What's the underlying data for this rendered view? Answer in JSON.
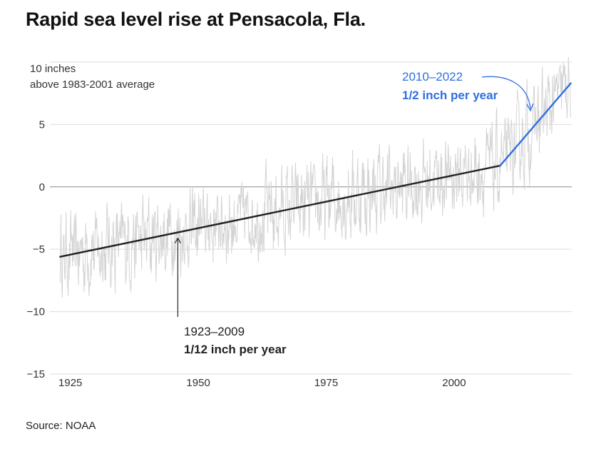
{
  "title": "Rapid sea level rise at Pensacola, Fla.",
  "source": "Source: NOAA",
  "colors": {
    "raw": "#d4d4d4",
    "trend_early": "#222222",
    "trend_recent": "#2f6fe0",
    "grid": "#dcdcdc"
  },
  "chart_data": {
    "type": "line",
    "title": "Rapid sea level rise at Pensacola, Fla.",
    "ylabel_lines": [
      "10 inches",
      "above 1983-2001 average"
    ],
    "ylim": [
      -15,
      12
    ],
    "xlim": [
      1921,
      2023
    ],
    "yticks": [
      {
        "value": 5,
        "label": "5"
      },
      {
        "value": 0,
        "label": "0"
      },
      {
        "value": -5,
        "label": "−5"
      },
      {
        "value": -10,
        "label": "−10"
      },
      {
        "value": -15,
        "label": "−15"
      }
    ],
    "xticks": [
      {
        "value": 1925,
        "label": "1925"
      },
      {
        "value": 1950,
        "label": "1950"
      },
      {
        "value": 1975,
        "label": "1975"
      },
      {
        "value": 2000,
        "label": "2000"
      }
    ],
    "series": [
      {
        "name": "Monthly sea level (raw)",
        "kind": "noisy",
        "start_year": 1923,
        "end_year": 2022.8
      },
      {
        "name": "1923–2009 trend",
        "x": [
          1923,
          2009
        ],
        "y": [
          -5.6,
          1.7
        ],
        "label_period": "1923–2009",
        "label_rate": "1/12 inch per year"
      },
      {
        "name": "2010–2022 trend",
        "x": [
          2009,
          2022.8
        ],
        "y": [
          1.7,
          8.3
        ],
        "label_period": "2010–2022",
        "label_rate": "1/2 inch per year"
      }
    ]
  }
}
